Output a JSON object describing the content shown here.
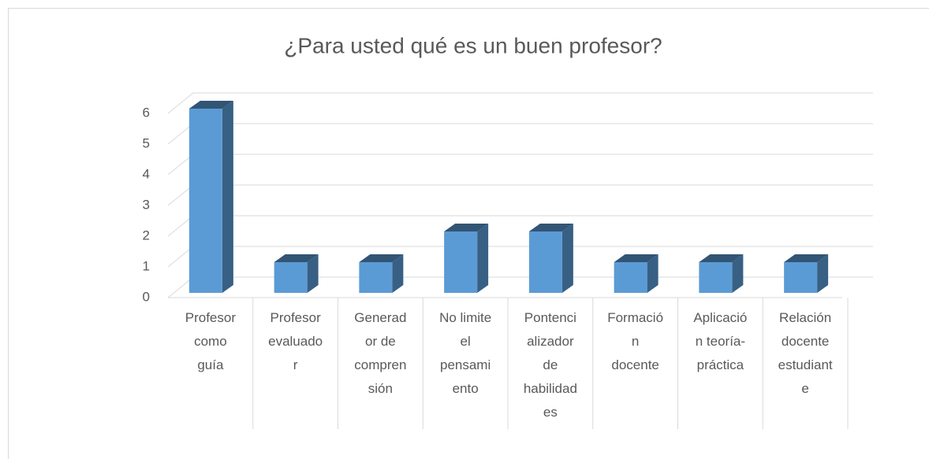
{
  "chart_data": {
    "type": "bar3d",
    "title": "¿Para usted qué es un buen profesor?",
    "categories": [
      "Profesor\ncomo\nguía",
      "Profesor\nevaluado\nr",
      "Generad\nor de\ncompren\nsión",
      "No limite\nel\npensami\nento",
      "Pontenci\nalizador\nde\nhabilidad\nes",
      "Formació\nn\ndocente",
      "Aplicació\nn teoría-\npráctica",
      "Relación\ndocente\nestudiant\ne"
    ],
    "values": [
      6,
      1,
      1,
      2,
      2,
      1,
      1,
      1
    ],
    "color": "#5b9bd5",
    "ylim": [
      0,
      6
    ],
    "yticks": [
      0,
      1,
      2,
      3,
      4,
      5,
      6
    ],
    "grid": true
  }
}
